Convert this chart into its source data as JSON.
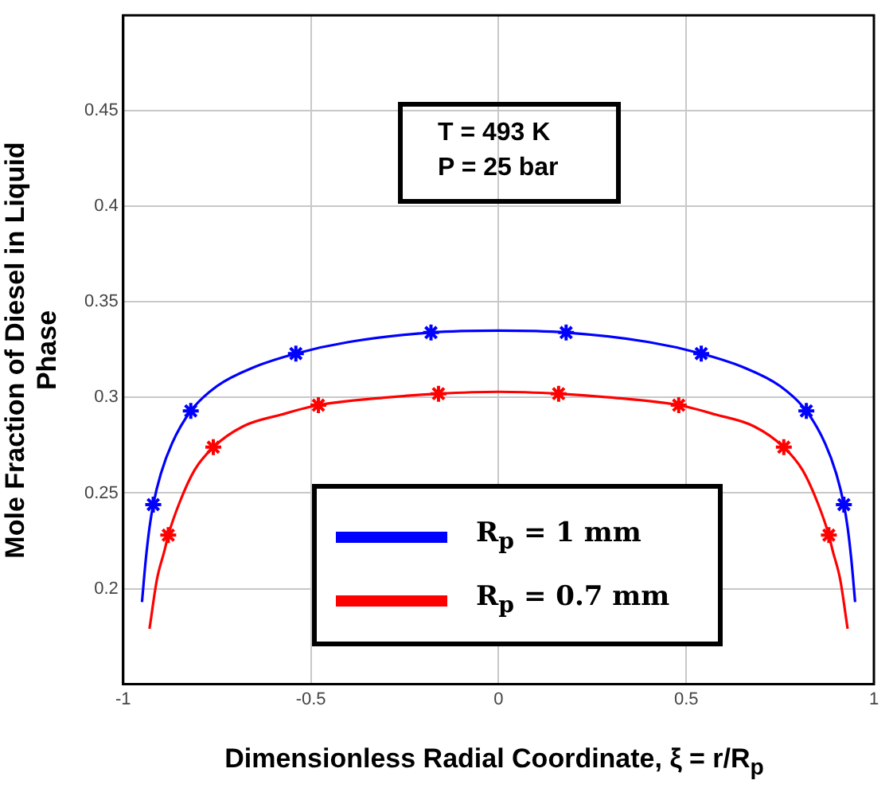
{
  "chart_data": {
    "type": "line",
    "xlabel": "Dimensionless  Radial Coordinate, ξ = r/R$_{p}$",
    "ylabel": "Mole Fraction of Diesel in Liquid Phase",
    "annotations": [
      "T = 493 K",
      "P = 25 bar"
    ],
    "xlim": [
      -1,
      1
    ],
    "xticks": [
      -1,
      -0.5,
      0,
      0.5,
      1
    ],
    "ylim": [
      0.15,
      0.5
    ],
    "yticks": [
      0.2,
      0.25,
      0.3,
      0.35,
      0.4,
      0.45
    ],
    "grid": true,
    "legend": "bottom",
    "line_style": "solid",
    "series": [
      {
        "name": "R$_{p}$ = 1 mm",
        "color": "#0000ff",
        "marker": "none",
        "x": [
          -0.95,
          -0.94,
          -0.93,
          -0.92,
          -0.9,
          -0.87,
          -0.82,
          -0.75,
          -0.65,
          -0.54,
          -0.4,
          -0.18,
          0,
          0.18,
          0.4,
          0.54,
          0.65,
          0.75,
          0.82,
          0.87,
          0.9,
          0.92,
          0.93,
          0.94,
          0.95
        ],
        "values": [
          0.193,
          0.215,
          0.232,
          0.244,
          0.26,
          0.276,
          0.293,
          0.306,
          0.316,
          0.323,
          0.329,
          0.334,
          0.335,
          0.334,
          0.329,
          0.323,
          0.316,
          0.306,
          0.293,
          0.276,
          0.26,
          0.244,
          0.232,
          0.215,
          0.193
        ]
      },
      {
        "name": "R$_{p}$ = 0.7 mm",
        "color": "#ff0000",
        "marker": "none",
        "x": [
          -0.93,
          -0.91,
          -0.89,
          -0.88,
          -0.85,
          -0.81,
          -0.76,
          -0.68,
          -0.58,
          -0.48,
          -0.3,
          -0.16,
          0,
          0.16,
          0.3,
          0.48,
          0.58,
          0.68,
          0.76,
          0.81,
          0.85,
          0.88,
          0.89,
          0.91,
          0.93
        ],
        "values": [
          0.179,
          0.205,
          0.22,
          0.228,
          0.245,
          0.262,
          0.274,
          0.285,
          0.291,
          0.296,
          0.3,
          0.302,
          0.303,
          0.302,
          0.3,
          0.296,
          0.291,
          0.285,
          0.274,
          0.262,
          0.245,
          0.228,
          0.22,
          0.205,
          0.179
        ]
      },
      {
        "color": "#0000ff",
        "type": "scatter",
        "marker": "cross",
        "x": [
          -0.92,
          -0.82,
          -0.54,
          -0.18,
          0.18,
          0.54,
          0.82,
          0.92
        ],
        "values": [
          0.244,
          0.293,
          0.323,
          0.334,
          0.334,
          0.323,
          0.293,
          0.244
        ]
      },
      {
        "color": "#ff0000",
        "type": "scatter",
        "marker": "cross",
        "x": [
          -0.88,
          -0.76,
          -0.48,
          -0.16,
          0.16,
          0.48,
          0.76,
          0.88
        ],
        "values": [
          0.228,
          0.274,
          0.296,
          0.302,
          0.302,
          0.296,
          0.274,
          0.228
        ]
      }
    ]
  }
}
